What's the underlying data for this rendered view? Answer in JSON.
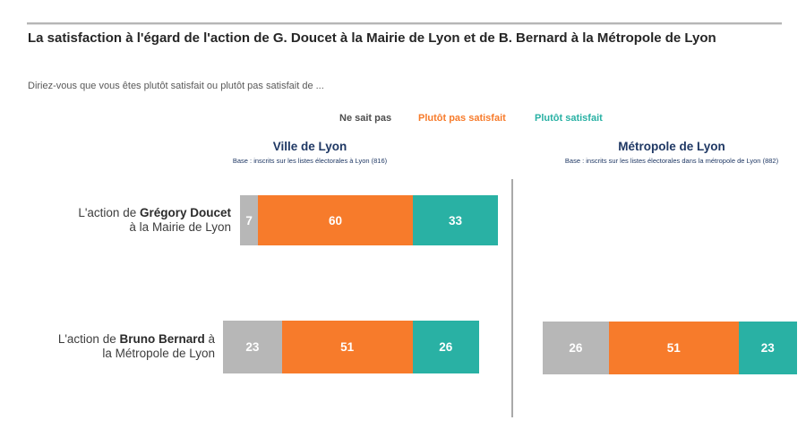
{
  "header": {
    "title": "La satisfaction à l'égard de l'action de G. Doucet à la Mairie de Lyon et de B. Bernard à la Métropole de Lyon",
    "question": "Diriez-vous que vous êtes plutôt satisfait ou plutôt pas satisfait de ..."
  },
  "legend": {
    "items": [
      {
        "label": "Ne sait pas",
        "color": "#4d4d4d"
      },
      {
        "label": "Plutôt pas satisfait",
        "color": "#f77b2b"
      },
      {
        "label": "Plutôt satisfait",
        "color": "#29b1a4"
      }
    ]
  },
  "columns": [
    {
      "title": "Ville de Lyon",
      "base": "Base : inscrits sur les listes électorales à Lyon (816)"
    },
    {
      "title": "Métropole de Lyon",
      "base": "Base : inscrits sur les listes électorales dans la métropole de Lyon (882)"
    }
  ],
  "rows": [
    {
      "prefix": "L'action de ",
      "bold": "Grégory Doucet",
      "rest": "",
      "line2": "à la Mairie de Lyon"
    },
    {
      "prefix": "L'action de ",
      "bold": "Bruno Bernard",
      "rest": " à",
      "line2": "la Métropole de Lyon"
    }
  ],
  "chart_data": {
    "type": "bar",
    "subtype": "horizontal-stacked",
    "units": "percent",
    "xlim": [
      0,
      100
    ],
    "categories": [
      "Ne sait pas",
      "Plutôt pas satisfait",
      "Plutôt satisfait"
    ],
    "colors": [
      "#b7b7b7",
      "#f77b2b",
      "#29b1a4"
    ],
    "bases": {
      "Ville de Lyon": 816,
      "Métropole de Lyon": 882
    },
    "bars": [
      {
        "group": "Ville de Lyon",
        "item": "L'action de Grégory Doucet à la Mairie de Lyon",
        "values": [
          7,
          60,
          33
        ]
      },
      {
        "group": "Ville de Lyon",
        "item": "L'action de Bruno Bernard à la Métropole de Lyon",
        "values": [
          23,
          51,
          26
        ]
      },
      {
        "group": "Métropole de Lyon",
        "item": "L'action de Bruno Bernard à la Métropole de Lyon",
        "values": [
          26,
          51,
          23
        ]
      }
    ]
  }
}
